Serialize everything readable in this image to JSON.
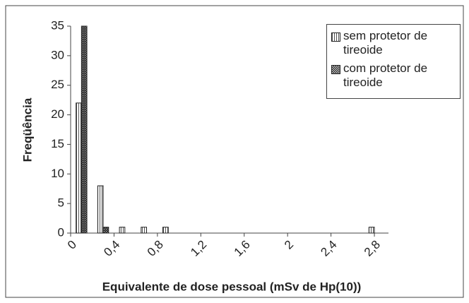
{
  "chart_data": {
    "type": "bar",
    "x_label": "Equivalente de dose pessoal (mSv de Hp(10))",
    "y_label": "Freqüência",
    "x": [
      0.1,
      0.3,
      0.5,
      0.7,
      0.9,
      2.8
    ],
    "series": [
      {
        "name": "sem protetor de tireoide",
        "color": "#ffffff",
        "pattern": "stripes",
        "values": [
          22,
          8,
          1,
          1,
          1,
          1
        ]
      },
      {
        "name": "com protetor de tireoide",
        "color": "#333333",
        "pattern": "checker",
        "values": [
          35,
          1,
          0,
          0,
          0,
          0
        ]
      }
    ],
    "xlim": [
      0,
      2.93
    ],
    "xticks": [
      0,
      {
        "value": 0.4,
        "label": "0,4"
      },
      {
        "value": 0.8,
        "label": "0,8"
      },
      {
        "value": 1.2,
        "label": "1,2"
      },
      {
        "value": 1.6,
        "label": "1,6"
      },
      2,
      {
        "value": 2.4,
        "label": "2,4"
      },
      {
        "value": 2.8,
        "label": "2,8"
      }
    ],
    "ylim": [
      0,
      35
    ],
    "yticks": [
      0,
      5,
      10,
      15,
      20,
      25,
      30,
      35
    ],
    "grid": false,
    "legend": "upper right"
  }
}
